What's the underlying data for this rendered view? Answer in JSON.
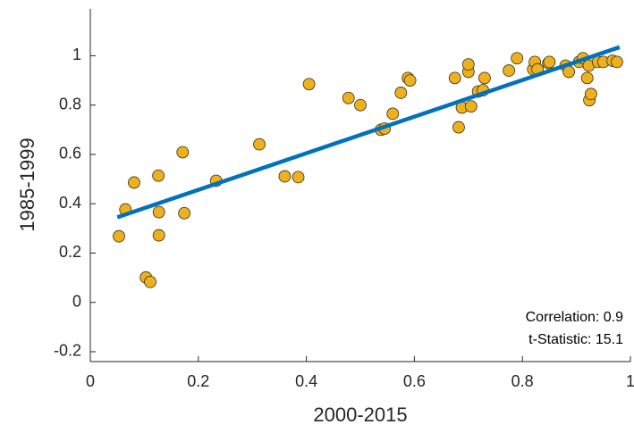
{
  "chart_data": {
    "type": "scatter",
    "xlabel": "2000-2015",
    "ylabel": "1985-1999",
    "xlim": [
      0,
      1
    ],
    "ylim": [
      -0.24,
      1.19
    ],
    "xticks": [
      0,
      0.2,
      0.4,
      0.6,
      0.8,
      1
    ],
    "yticks": [
      -0.2,
      0,
      0.2,
      0.4,
      0.6,
      0.8,
      1
    ],
    "color": "#edb120",
    "x": [
      0.053,
      0.065,
      0.081,
      0.103,
      0.111,
      0.126,
      0.127,
      0.127,
      0.171,
      0.174,
      0.233,
      0.313,
      0.36,
      0.385,
      0.405,
      0.478,
      0.5,
      0.538,
      0.545,
      0.56,
      0.575,
      0.588,
      0.592,
      0.675,
      0.682,
      0.688,
      0.7,
      0.7,
      0.705,
      0.718,
      0.727,
      0.73,
      0.775,
      0.79,
      0.82,
      0.823,
      0.828,
      0.848,
      0.85,
      0.88,
      0.886,
      0.905,
      0.912,
      0.92,
      0.923,
      0.924,
      0.927,
      0.94,
      0.95,
      0.967,
      0.975
    ],
    "values": [
      0.268,
      0.377,
      0.486,
      0.101,
      0.083,
      0.514,
      0.366,
      0.272,
      0.609,
      0.362,
      0.493,
      0.641,
      0.511,
      0.508,
      0.885,
      0.829,
      0.8,
      0.7,
      0.705,
      0.765,
      0.85,
      0.91,
      0.9,
      0.91,
      0.71,
      0.79,
      0.935,
      0.965,
      0.795,
      0.855,
      0.86,
      0.91,
      0.94,
      0.99,
      0.945,
      0.975,
      0.945,
      0.97,
      0.975,
      0.96,
      0.935,
      0.975,
      0.99,
      0.91,
      0.96,
      0.82,
      0.845,
      0.975,
      0.975,
      0.98,
      0.975
    ],
    "fit_line": {
      "x": [
        0.05,
        0.98
      ],
      "values": [
        0.345,
        1.035
      ],
      "color": "#0072bd"
    },
    "annotations": [
      "Correlation: 0.9",
      "t-Statistic: 15.1"
    ]
  }
}
